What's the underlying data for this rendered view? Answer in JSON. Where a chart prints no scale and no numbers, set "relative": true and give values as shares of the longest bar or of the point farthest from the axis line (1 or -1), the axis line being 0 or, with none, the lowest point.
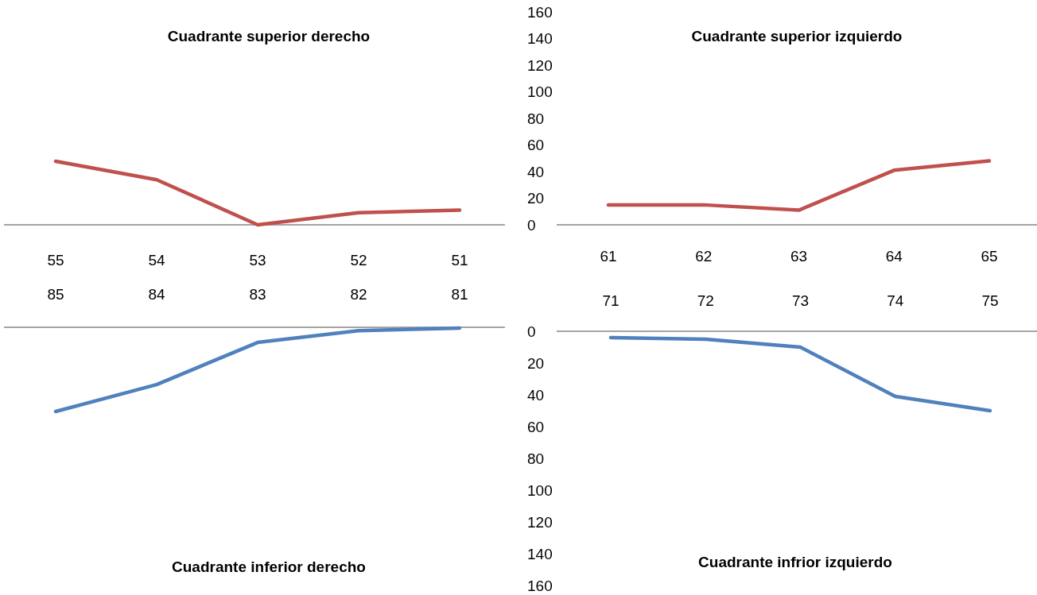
{
  "chart_data": [
    {
      "type": "line",
      "title": "Cuadrante superior derecho",
      "categories": [
        "55",
        "54",
        "53",
        "52",
        "51"
      ],
      "relative": true,
      "series": [
        {
          "color": "#c0504d",
          "values": [
            1,
            0.71,
            0,
            0.19,
            0.23
          ]
        }
      ]
    },
    {
      "type": "line",
      "title": "Cuadrante superior izquierdo",
      "categories": [
        "61",
        "62",
        "63",
        "64",
        "65"
      ],
      "ylim": [
        0,
        160
      ],
      "yticks": [
        0,
        20,
        40,
        60,
        80,
        100,
        120,
        140,
        160
      ],
      "series": [
        {
          "color": "#c0504d",
          "values": [
            15,
            15,
            11,
            41,
            48
          ]
        }
      ]
    },
    {
      "type": "line",
      "title": "Cuadrante inferior derecho",
      "categories": [
        "85",
        "84",
        "83",
        "82",
        "81"
      ],
      "relative": true,
      "series": [
        {
          "color": "#4f81bd",
          "values": [
            -1,
            -0.68,
            -0.18,
            -0.04,
            -0.01
          ]
        }
      ]
    },
    {
      "type": "line",
      "title": "Cuadrante infrior izquierdo",
      "categories": [
        "71",
        "72",
        "73",
        "74",
        "75"
      ],
      "ylim": [
        160,
        0
      ],
      "yticks": [
        0,
        20,
        40,
        60,
        80,
        100,
        120,
        140,
        160
      ],
      "series": [
        {
          "color": "#4f81bd",
          "values": [
            4,
            5,
            10,
            41,
            50
          ]
        }
      ]
    }
  ]
}
